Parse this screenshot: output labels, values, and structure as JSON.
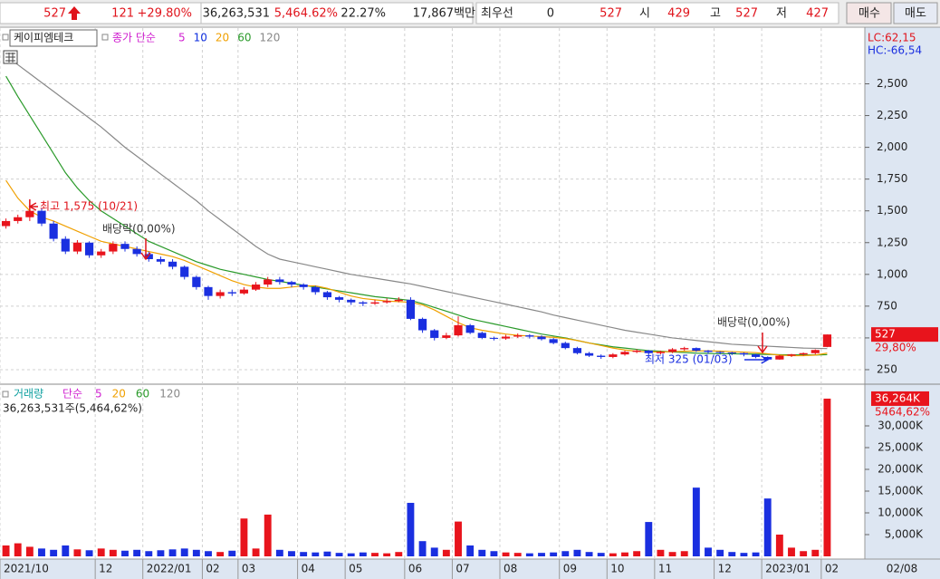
{
  "header": {
    "price": "527",
    "change": "121",
    "change_rate": "+29.80%",
    "volume": "36,263,531",
    "volume_rate": "5,464.62%",
    "turnover": "22.27%",
    "amount": "17,867백만",
    "best_label": "최우선",
    "best_value": "0",
    "best_price": "527",
    "open_label": "시",
    "open": "429",
    "high_label": "고",
    "high": "527",
    "low_label": "저",
    "low": "427",
    "buy": "매수",
    "sell": "매도"
  },
  "chart_data": [
    {
      "type": "candlestick",
      "stock_name": "케이피엠테크",
      "indicator": "종가 단순",
      "legend": [
        {
          "text": "5",
          "color": "#d020d0"
        },
        {
          "text": "10",
          "color": "#1030e0"
        },
        {
          "text": "20",
          "color": "#f0a000"
        },
        {
          "text": "60",
          "color": "#2a9a2a"
        },
        {
          "text": "120",
          "color": "#888888"
        }
      ],
      "lc": "LC:62,15",
      "hc": "HC:-66,54",
      "change_label": "29,80%",
      "up_color": "#e8141c",
      "down_color": "#1a2fe0",
      "grid": true,
      "ylim": [
        150,
        2910
      ],
      "yticks": [
        250,
        500,
        750,
        {
          "value": 1000,
          "label": "1,000"
        },
        {
          "value": 1250,
          "label": "1,250"
        },
        {
          "value": 1500,
          "label": "1,500"
        },
        {
          "value": 1750,
          "label": "1,750"
        },
        {
          "value": 2000,
          "label": "2,000"
        },
        {
          "value": 2250,
          "label": "2,250"
        },
        {
          "value": 2500,
          "label": "2,500"
        }
      ],
      "open": [
        1380,
        1420,
        1450,
        1500,
        1400,
        1280,
        1180,
        1250,
        1150,
        1180,
        1240,
        1200,
        1160,
        1120,
        1100,
        1060,
        980,
        900,
        830,
        860,
        850,
        880,
        920,
        960,
        940,
        920,
        900,
        860,
        820,
        800,
        780,
        770,
        780,
        790,
        800,
        650,
        560,
        500,
        520,
        600,
        540,
        500,
        495,
        510,
        520,
        510,
        490,
        460,
        420,
        380,
        360,
        350,
        370,
        390,
        400,
        380,
        390,
        410,
        420,
        400,
        390,
        385,
        380,
        370,
        350,
        330,
        360,
        370,
        380,
        429
      ],
      "high": [
        1440,
        1470,
        1575,
        1520,
        1420,
        1300,
        1270,
        1260,
        1200,
        1260,
        1260,
        1220,
        1180,
        1140,
        1120,
        1070,
        990,
        910,
        880,
        880,
        900,
        940,
        980,
        980,
        950,
        930,
        910,
        870,
        830,
        810,
        790,
        800,
        810,
        820,
        820,
        660,
        570,
        540,
        670,
        610,
        550,
        510,
        525,
        535,
        530,
        520,
        500,
        470,
        430,
        390,
        370,
        380,
        400,
        410,
        405,
        400,
        420,
        430,
        425,
        405,
        395,
        390,
        385,
        375,
        355,
        365,
        375,
        385,
        410,
        527
      ],
      "low": [
        1360,
        1400,
        1420,
        1380,
        1260,
        1160,
        1160,
        1130,
        1130,
        1160,
        1180,
        1140,
        1100,
        1080,
        1040,
        960,
        880,
        800,
        810,
        830,
        840,
        870,
        900,
        920,
        900,
        880,
        840,
        800,
        780,
        760,
        750,
        760,
        770,
        780,
        640,
        540,
        480,
        490,
        510,
        530,
        490,
        480,
        485,
        500,
        495,
        480,
        450,
        410,
        370,
        350,
        335,
        340,
        360,
        380,
        370,
        370,
        380,
        400,
        390,
        375,
        370,
        365,
        355,
        340,
        325,
        328,
        350,
        360,
        370,
        427
      ],
      "close": [
        1420,
        1450,
        1500,
        1400,
        1280,
        1180,
        1250,
        1150,
        1180,
        1240,
        1200,
        1160,
        1120,
        1100,
        1060,
        980,
        900,
        830,
        860,
        850,
        880,
        920,
        960,
        940,
        920,
        900,
        860,
        820,
        800,
        780,
        770,
        780,
        790,
        800,
        650,
        560,
        500,
        520,
        600,
        540,
        500,
        495,
        510,
        520,
        510,
        490,
        460,
        420,
        380,
        360,
        350,
        370,
        390,
        400,
        380,
        390,
        410,
        420,
        400,
        390,
        385,
        380,
        370,
        350,
        330,
        360,
        370,
        380,
        405,
        527
      ],
      "series": [
        {
          "name": "120",
          "color": "#888888",
          "values": [
            2720,
            2650,
            2580,
            2510,
            2440,
            2370,
            2300,
            2230,
            2160,
            2080,
            2000,
            1930,
            1860,
            1790,
            1720,
            1650,
            1580,
            1500,
            1430,
            1360,
            1290,
            1220,
            1160,
            1120,
            1100,
            1080,
            1060,
            1040,
            1020,
            1000,
            985,
            970,
            955,
            940,
            925,
            905,
            885,
            865,
            845,
            825,
            805,
            785,
            765,
            745,
            725,
            705,
            680,
            660,
            640,
            620,
            600,
            580,
            560,
            545,
            530,
            515,
            500,
            490,
            480,
            470,
            460,
            450,
            445,
            440,
            435,
            430,
            425,
            420,
            418,
            416
          ]
        },
        {
          "name": "60",
          "color": "#2a9a2a",
          "values": [
            2560,
            2400,
            2250,
            2100,
            1950,
            1800,
            1680,
            1580,
            1500,
            1440,
            1380,
            1320,
            1260,
            1220,
            1180,
            1140,
            1100,
            1070,
            1040,
            1020,
            1000,
            980,
            960,
            945,
            930,
            915,
            900,
            885,
            870,
            855,
            840,
            825,
            815,
            805,
            795,
            770,
            740,
            710,
            680,
            650,
            630,
            610,
            590,
            570,
            550,
            530,
            515,
            500,
            480,
            460,
            445,
            430,
            420,
            410,
            400,
            395,
            390,
            385,
            380,
            378,
            376,
            375,
            374,
            372,
            370,
            368,
            367,
            366,
            366,
            368
          ]
        },
        {
          "name": "20",
          "color": "#f0a000",
          "values": [
            1740,
            1600,
            1500,
            1450,
            1420,
            1380,
            1340,
            1300,
            1260,
            1240,
            1220,
            1200,
            1180,
            1160,
            1140,
            1110,
            1070,
            1030,
            990,
            950,
            920,
            900,
            890,
            890,
            900,
            910,
            910,
            890,
            860,
            830,
            810,
            800,
            790,
            785,
            780,
            760,
            720,
            670,
            620,
            580,
            560,
            545,
            530,
            520,
            515,
            510,
            505,
            495,
            480,
            460,
            440,
            420,
            405,
            395,
            390,
            390,
            392,
            395,
            398,
            398,
            396,
            392,
            388,
            384,
            375,
            365,
            360,
            360,
            365,
            380
          ]
        }
      ],
      "annotations": [
        {
          "text": "최고 1,575 (10/21)",
          "color": "#e0141c"
        },
        {
          "text": "배당락(0,00%)",
          "color": "#333333"
        },
        {
          "text": "배당락(0,00%)",
          "color": "#333333"
        },
        {
          "text": "최저 325 (01/03)",
          "color": "#1a2fe0"
        }
      ]
    },
    {
      "type": "bar",
      "title": "거래량",
      "indicator": "단순",
      "legend": [
        {
          "text": "5",
          "color": "#d020d0"
        },
        {
          "text": "20",
          "color": "#f0a000"
        },
        {
          "text": "60",
          "color": "#2a9a2a"
        },
        {
          "text": "120",
          "color": "#888888"
        }
      ],
      "summary": "36,263,531주(5,464,62%)",
      "last_label": "36,264K",
      "last_change": "5464,62%",
      "up_color": "#e8141c",
      "down_color": "#1a2fe0",
      "ylim": [
        0,
        38750
      ],
      "yticks": [
        {
          "value": 5000,
          "label": "5,000K"
        },
        {
          "value": 10000,
          "label": "10,000K"
        },
        {
          "value": 15000,
          "label": "15,000K"
        },
        {
          "value": 20000,
          "label": "20,000K"
        },
        {
          "value": 25000,
          "label": "25,000K"
        },
        {
          "value": 30000,
          "label": "30,000K"
        }
      ],
      "categories": [
        "2021/10",
        null,
        null,
        null,
        null,
        null,
        null,
        null,
        "12",
        null,
        null,
        null,
        "2022/01",
        null,
        null,
        null,
        null,
        "02",
        null,
        null,
        "03",
        null,
        null,
        null,
        null,
        "04",
        null,
        null,
        null,
        "05",
        null,
        null,
        null,
        null,
        "06",
        null,
        null,
        null,
        "07",
        null,
        null,
        null,
        "08",
        null,
        null,
        null,
        null,
        "09",
        null,
        null,
        null,
        "10",
        null,
        null,
        null,
        "11",
        null,
        null,
        null,
        null,
        "12",
        null,
        null,
        null,
        "2023/01",
        null,
        null,
        null,
        null,
        "02"
      ],
      "values": [
        2500,
        3000,
        2200,
        1800,
        1500,
        2500,
        1600,
        1400,
        1800,
        1500,
        1300,
        1500,
        1200,
        1400,
        1600,
        1800,
        1500,
        1200,
        1000,
        1300,
        8700,
        1800,
        9600,
        1500,
        1200,
        1000,
        900,
        1100,
        800,
        700,
        900,
        800,
        700,
        1000,
        12300,
        3500,
        2000,
        1500,
        8000,
        2500,
        1500,
        1200,
        900,
        800,
        700,
        800,
        900,
        1200,
        1500,
        1000,
        800,
        700,
        900,
        1200,
        7900,
        1500,
        1000,
        1200,
        15800,
        2000,
        1500,
        1000,
        800,
        900,
        13300,
        5000,
        2000,
        1200,
        1500,
        36264
      ],
      "date_label": "02/08"
    }
  ]
}
